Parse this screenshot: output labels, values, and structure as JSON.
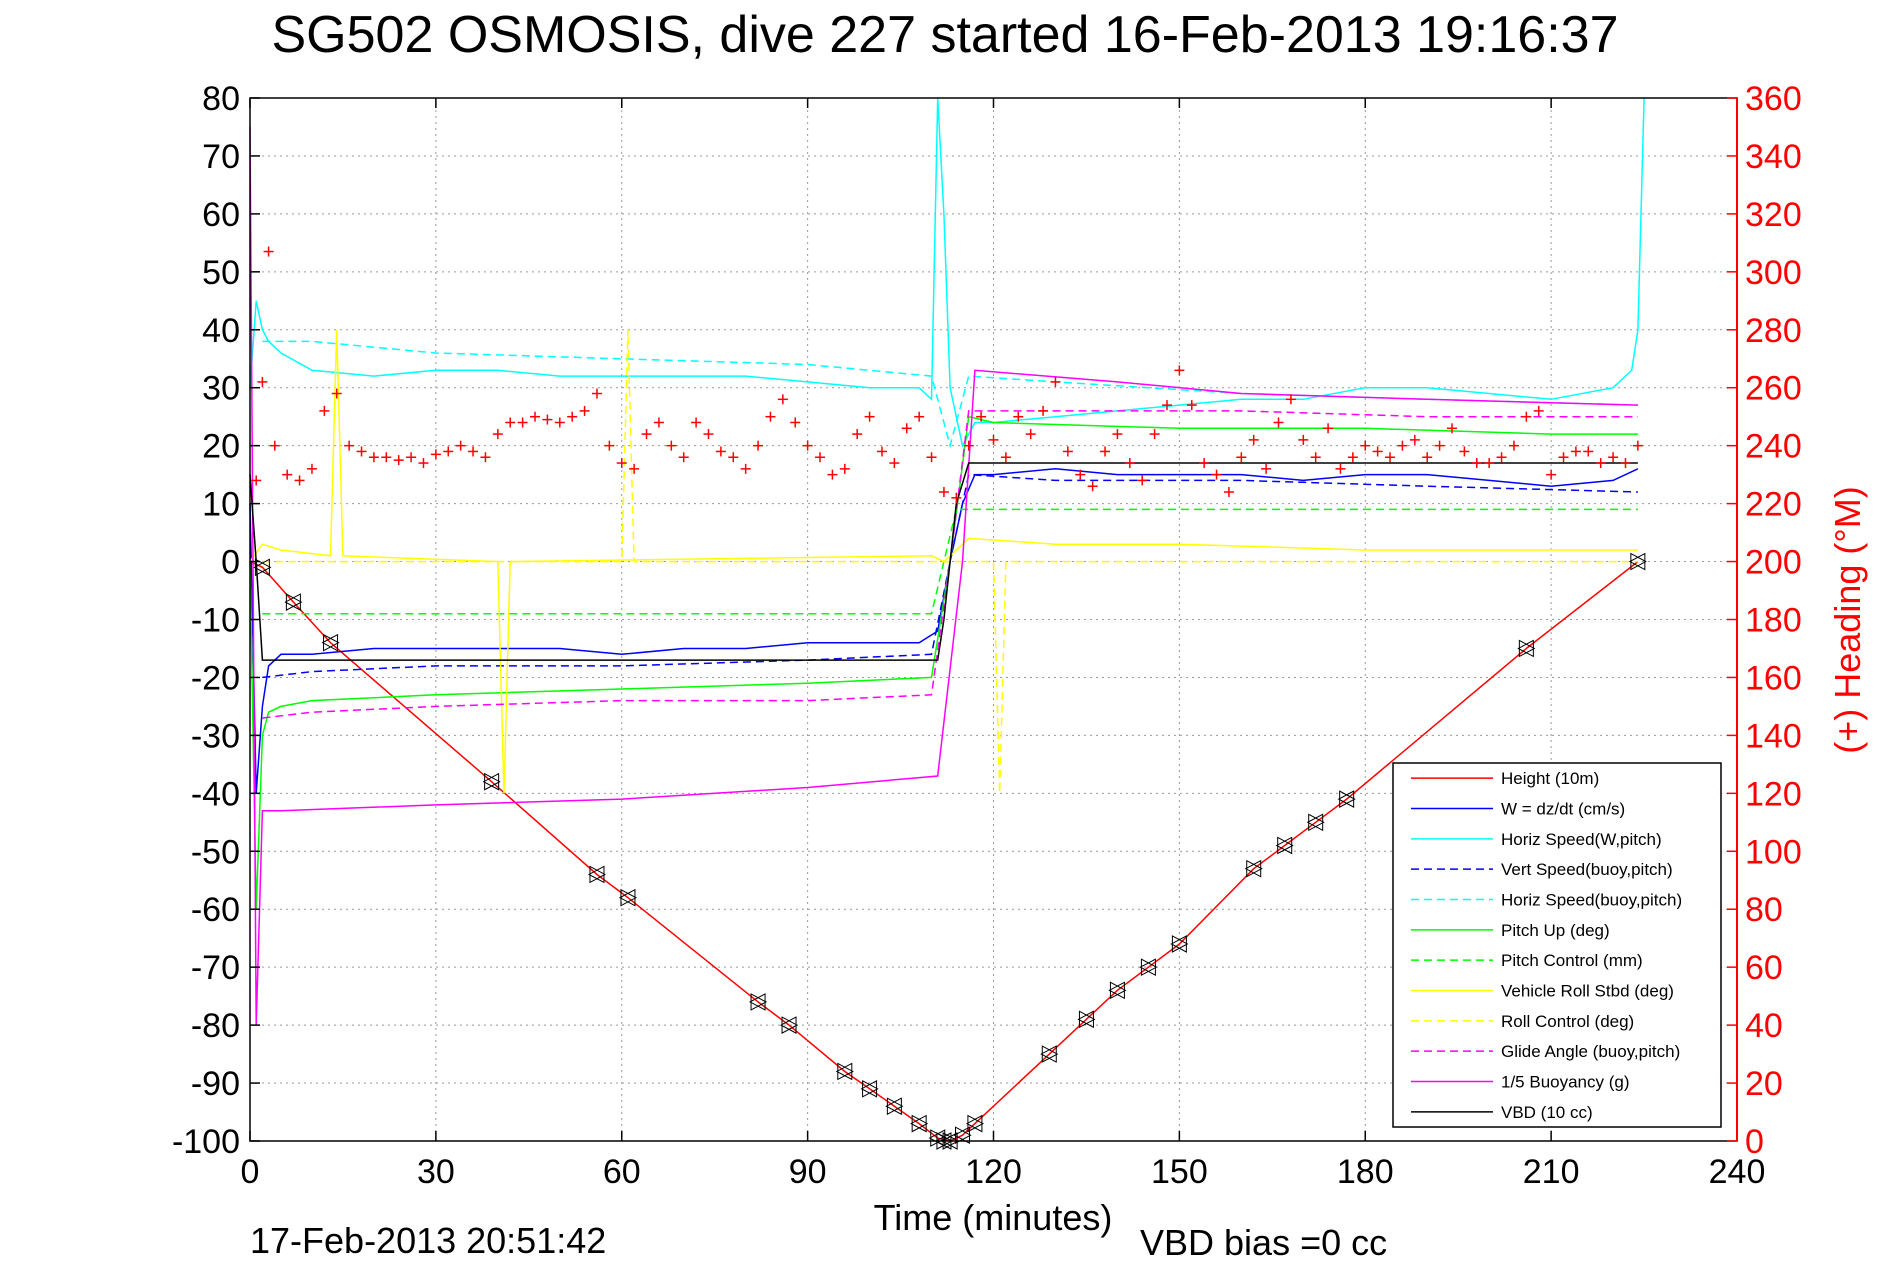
{
  "chart_data": {
    "type": "line",
    "title": "SG502 OSMOSIS, dive 227 started 16-Feb-2013 19:16:37",
    "xlabel": "Time (minutes)",
    "ylabel": "",
    "ylabel_right": "(+) Heading (°M)",
    "xlim": [
      0,
      240
    ],
    "ylim": [
      -100,
      80
    ],
    "ylim_right": [
      0,
      360
    ],
    "xticks": [
      0,
      30,
      60,
      90,
      120,
      150,
      180,
      210,
      240
    ],
    "yticks": [
      80,
      70,
      60,
      50,
      40,
      30,
      20,
      10,
      0,
      -10,
      -20,
      -30,
      -40,
      -50,
      -60,
      -70,
      -80,
      -90,
      -100
    ],
    "yticks_right": [
      360,
      340,
      320,
      300,
      280,
      260,
      240,
      220,
      200,
      180,
      160,
      140,
      120,
      100,
      80,
      60,
      40,
      20,
      0
    ],
    "grid": true,
    "legend_placement": "bottom-right",
    "footer_date": "17-Feb-2013 20:51:42",
    "footer_bias": "VBD bias =0 cc",
    "colors": {
      "right_axis": "#ff0000",
      "heading_marker": "#ff0000"
    },
    "series": [
      {
        "name": "Height (10m)",
        "color": "#ff0000",
        "style": "solid",
        "x": [
          0,
          2,
          7,
          13,
          39,
          56,
          61,
          82,
          87,
          96,
          100,
          104,
          108,
          111,
          113,
          115,
          117,
          129,
          135,
          140,
          145,
          150,
          162,
          167,
          172,
          177,
          206,
          224
        ],
        "y": [
          0,
          -1,
          -7,
          -14,
          -38,
          -54,
          -58,
          -76,
          -80,
          -88,
          -91,
          -94,
          -97,
          -99.5,
          -100,
          -99,
          -97,
          -85,
          -79,
          -74,
          -70,
          -66,
          -53,
          -49,
          -45,
          -41,
          -15,
          0
        ]
      },
      {
        "name": "W = dz/dt (cm/s)",
        "color": "#0000ff",
        "style": "solid",
        "x": [
          0,
          1,
          2,
          3,
          5,
          10,
          20,
          30,
          40,
          50,
          60,
          70,
          80,
          90,
          100,
          108,
          111,
          113,
          115,
          117,
          120,
          130,
          140,
          150,
          160,
          170,
          180,
          190,
          200,
          210,
          220,
          224
        ],
        "y": [
          10,
          -40,
          -25,
          -18,
          -16,
          -16,
          -15,
          -15,
          -15,
          -15,
          -16,
          -15,
          -15,
          -14,
          -14,
          -14,
          -12,
          0,
          10,
          15,
          15,
          16,
          15,
          15,
          15,
          14,
          15,
          15,
          14,
          13,
          14,
          16
        ]
      },
      {
        "name": "Horiz Speed(W,pitch)",
        "color": "#00ffff",
        "style": "solid",
        "x": [
          0,
          1,
          2,
          3,
          5,
          10,
          20,
          30,
          40,
          50,
          60,
          70,
          80,
          90,
          100,
          108,
          110,
          111,
          112,
          113,
          115,
          117,
          120,
          130,
          140,
          150,
          160,
          170,
          180,
          190,
          200,
          210,
          220,
          223,
          224,
          225
        ],
        "y": [
          30,
          45,
          40,
          38,
          36,
          33,
          32,
          33,
          33,
          32,
          32,
          32,
          32,
          31,
          30,
          30,
          28,
          80,
          60,
          30,
          20,
          24,
          24,
          25,
          26,
          27,
          28,
          28,
          30,
          30,
          29,
          28,
          30,
          33,
          40,
          80
        ]
      },
      {
        "name": "Vert Speed(buoy,pitch)",
        "color": "#0000ff",
        "style": "dashed",
        "x": [
          2,
          10,
          30,
          60,
          90,
          110,
          113,
          116,
          130,
          160,
          190,
          224
        ],
        "y": [
          -20,
          -19,
          -18,
          -18,
          -17,
          -16,
          0,
          15,
          14,
          14,
          13,
          12
        ]
      },
      {
        "name": "Horiz Speed(buoy,pitch)",
        "color": "#00ffff",
        "style": "dashed",
        "x": [
          2,
          10,
          30,
          60,
          90,
          110,
          113,
          116,
          130,
          160,
          190,
          224
        ],
        "y": [
          38,
          38,
          36,
          35,
          34,
          32,
          20,
          32,
          31,
          29,
          28,
          27
        ]
      },
      {
        "name": "Pitch Up (deg)",
        "color": "#00ff00",
        "style": "solid",
        "x": [
          0,
          1,
          2,
          3,
          5,
          10,
          30,
          60,
          90,
          110,
          113,
          116,
          120,
          150,
          180,
          210,
          224
        ],
        "y": [
          0,
          -60,
          -30,
          -26,
          -25,
          -24,
          -23,
          -22,
          -21,
          -20,
          0,
          25,
          24,
          23,
          23,
          22,
          22
        ]
      },
      {
        "name": "Pitch Control (mm)",
        "color": "#00ff00",
        "style": "dashed",
        "x": [
          2,
          110,
          112,
          114,
          224
        ],
        "y": [
          -9,
          -9,
          0,
          9,
          9
        ]
      },
      {
        "name": "Vehicle Roll Stbd (deg)",
        "color": "#ffff00",
        "style": "solid",
        "x": [
          0,
          2,
          5,
          13,
          14,
          15,
          40,
          41,
          42,
          110,
          112,
          114,
          116,
          130,
          150,
          180,
          210,
          224
        ],
        "y": [
          0,
          3,
          2,
          1,
          40,
          1,
          0,
          -40,
          0,
          1,
          0,
          2,
          4,
          3,
          3,
          2,
          2,
          2
        ]
      },
      {
        "name": "Roll Control (deg)",
        "color": "#ffff00",
        "style": "dashed",
        "x": [
          2,
          60,
          61,
          62,
          120,
          121,
          122,
          224
        ],
        "y": [
          0,
          0,
          40,
          0,
          0,
          -40,
          0,
          0
        ]
      },
      {
        "name": "Glide Angle (buoy,pitch)",
        "color": "#ff00ff",
        "style": "dashed",
        "x": [
          2,
          10,
          30,
          60,
          90,
          110,
          113,
          116,
          130,
          160,
          190,
          224
        ],
        "y": [
          -27,
          -26,
          -25,
          -24,
          -24,
          -23,
          0,
          26,
          26,
          26,
          25,
          25
        ]
      },
      {
        "name": "1/5 Buoyancy (g)",
        "color": "#ff00ff",
        "style": "solid",
        "x": [
          0,
          1,
          2,
          5,
          30,
          60,
          90,
          111,
          115,
          117,
          140,
          160,
          190,
          224
        ],
        "y": [
          75,
          -80,
          -43,
          -43,
          -42,
          -41,
          -39,
          -37,
          0,
          33,
          31,
          29,
          28,
          27
        ]
      },
      {
        "name": "VBD (10 cc)",
        "color": "#000000",
        "style": "solid",
        "x": [
          0,
          1,
          2,
          5,
          111,
          112,
          114,
          116,
          224
        ],
        "y": [
          15,
          0,
          -17,
          -17,
          -17,
          -10,
          10,
          17,
          17
        ]
      }
    ],
    "heading_points": [
      [
        1,
        228
      ],
      [
        2,
        262
      ],
      [
        3,
        307
      ],
      [
        4,
        240
      ],
      [
        6,
        230
      ],
      [
        8,
        228
      ],
      [
        10,
        232
      ],
      [
        12,
        252
      ],
      [
        14,
        258
      ],
      [
        16,
        240
      ],
      [
        18,
        238
      ],
      [
        20,
        236
      ],
      [
        22,
        236
      ],
      [
        24,
        235
      ],
      [
        26,
        236
      ],
      [
        28,
        234
      ],
      [
        30,
        237
      ],
      [
        32,
        238
      ],
      [
        34,
        240
      ],
      [
        36,
        238
      ],
      [
        38,
        236
      ],
      [
        40,
        244
      ],
      [
        42,
        248
      ],
      [
        44,
        248
      ],
      [
        46,
        250
      ],
      [
        48,
        249
      ],
      [
        50,
        248
      ],
      [
        52,
        250
      ],
      [
        54,
        252
      ],
      [
        56,
        258
      ],
      [
        58,
        240
      ],
      [
        60,
        234
      ],
      [
        62,
        232
      ],
      [
        64,
        244
      ],
      [
        66,
        248
      ],
      [
        68,
        240
      ],
      [
        70,
        236
      ],
      [
        72,
        248
      ],
      [
        74,
        244
      ],
      [
        76,
        238
      ],
      [
        78,
        236
      ],
      [
        80,
        232
      ],
      [
        82,
        240
      ],
      [
        84,
        250
      ],
      [
        86,
        256
      ],
      [
        88,
        248
      ],
      [
        90,
        240
      ],
      [
        92,
        236
      ],
      [
        94,
        230
      ],
      [
        96,
        232
      ],
      [
        98,
        244
      ],
      [
        100,
        250
      ],
      [
        102,
        238
      ],
      [
        104,
        234
      ],
      [
        106,
        246
      ],
      [
        108,
        250
      ],
      [
        110,
        236
      ],
      [
        112,
        224
      ],
      [
        114,
        222
      ],
      [
        116,
        240
      ],
      [
        118,
        250
      ],
      [
        120,
        242
      ],
      [
        122,
        236
      ],
      [
        124,
        250
      ],
      [
        126,
        244
      ],
      [
        128,
        252
      ],
      [
        130,
        262
      ],
      [
        132,
        238
      ],
      [
        134,
        230
      ],
      [
        136,
        226
      ],
      [
        138,
        238
      ],
      [
        140,
        244
      ],
      [
        142,
        234
      ],
      [
        144,
        228
      ],
      [
        146,
        244
      ],
      [
        148,
        254
      ],
      [
        150,
        266
      ],
      [
        152,
        254
      ],
      [
        154,
        234
      ],
      [
        156,
        230
      ],
      [
        158,
        224
      ],
      [
        160,
        236
      ],
      [
        162,
        242
      ],
      [
        164,
        232
      ],
      [
        166,
        248
      ],
      [
        168,
        256
      ],
      [
        170,
        242
      ],
      [
        172,
        236
      ],
      [
        174,
        246
      ],
      [
        176,
        232
      ],
      [
        178,
        236
      ],
      [
        180,
        240
      ],
      [
        182,
        238
      ],
      [
        184,
        236
      ],
      [
        186,
        240
      ],
      [
        188,
        242
      ],
      [
        190,
        236
      ],
      [
        192,
        240
      ],
      [
        194,
        246
      ],
      [
        196,
        238
      ],
      [
        198,
        234
      ],
      [
        200,
        234
      ],
      [
        202,
        236
      ],
      [
        204,
        240
      ],
      [
        206,
        250
      ],
      [
        208,
        252
      ],
      [
        210,
        230
      ],
      [
        212,
        236
      ],
      [
        214,
        238
      ],
      [
        216,
        238
      ],
      [
        218,
        234
      ],
      [
        220,
        236
      ],
      [
        222,
        234
      ],
      [
        224,
        240
      ]
    ],
    "markers": [
      [
        2,
        -1
      ],
      [
        7,
        -7
      ],
      [
        13,
        -14
      ],
      [
        39,
        -38
      ],
      [
        56,
        -54
      ],
      [
        61,
        -58
      ],
      [
        82,
        -76
      ],
      [
        87,
        -80
      ],
      [
        96,
        -88
      ],
      [
        100,
        -91
      ],
      [
        104,
        -94
      ],
      [
        108,
        -97
      ],
      [
        111,
        -99.5
      ],
      [
        112,
        -100
      ],
      [
        113,
        -100
      ],
      [
        115,
        -99
      ],
      [
        117,
        -97
      ],
      [
        129,
        -85
      ],
      [
        135,
        -79
      ],
      [
        140,
        -74
      ],
      [
        145,
        -70
      ],
      [
        150,
        -66
      ],
      [
        162,
        -53
      ],
      [
        167,
        -49
      ],
      [
        172,
        -45
      ],
      [
        177,
        -41
      ],
      [
        206,
        -15
      ],
      [
        224,
        0
      ]
    ]
  }
}
